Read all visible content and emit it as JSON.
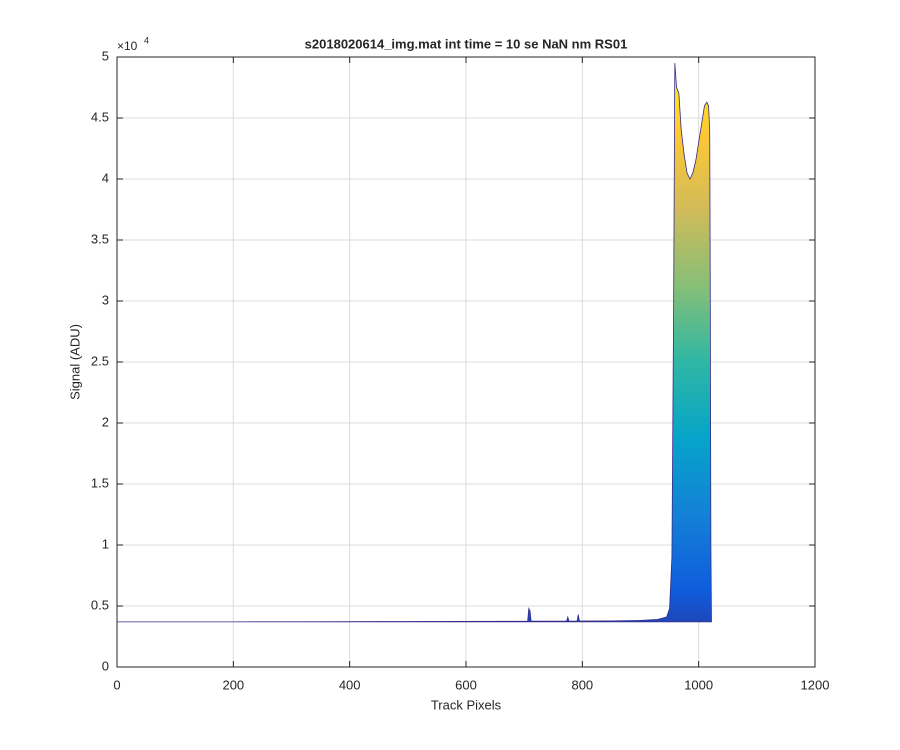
{
  "chart_data": {
    "type": "area",
    "title": "s2018020614_img.mat int time = 10 se  NaN nm RS01",
    "xlabel": "Track Pixels",
    "ylabel": "Signal (ADU)",
    "y_exponent": {
      "base": "×10",
      "power": "4"
    },
    "x": [
      0,
      100,
      200,
      300,
      400,
      500,
      600,
      700,
      706,
      708,
      710,
      712,
      773,
      775,
      777,
      791,
      793,
      795,
      850,
      900,
      930,
      945,
      950,
      954,
      957,
      959,
      962,
      966,
      970,
      975,
      980,
      985,
      990,
      995,
      1000,
      1005,
      1010,
      1014,
      1017,
      1019,
      1020,
      1021,
      1022
    ],
    "values": [
      3700,
      3700,
      3700,
      3710,
      3720,
      3730,
      3740,
      3750,
      3760,
      4800,
      4600,
      3760,
      3760,
      4100,
      3760,
      3760,
      4300,
      3770,
      3780,
      3820,
      3900,
      4100,
      4800,
      9000,
      30000,
      49500,
      47500,
      47000,
      44000,
      42000,
      40500,
      40000,
      40500,
      41500,
      43000,
      44500,
      46000,
      46300,
      46000,
      44000,
      30000,
      10000,
      3800
    ],
    "line_color": "#352a87",
    "colormap": [
      "#352a87",
      "#0f5cdd",
      "#1481d6",
      "#06a4ca",
      "#2eb7a4",
      "#87bf77",
      "#d1bb59",
      "#fec832",
      "#f9fb0e"
    ],
    "xlim": [
      0,
      1200
    ],
    "xticks": [
      0,
      200,
      400,
      600,
      800,
      1000,
      1200
    ],
    "ylim": [
      0,
      50000
    ],
    "yticks": [
      0,
      {
        "value": 5000,
        "label": "0.5"
      },
      {
        "value": 10000,
        "label": "1"
      },
      {
        "value": 15000,
        "label": "1.5"
      },
      {
        "value": 20000,
        "label": "2"
      },
      {
        "value": 25000,
        "label": "2.5"
      },
      {
        "value": 30000,
        "label": "3"
      },
      {
        "value": 35000,
        "label": "3.5"
      },
      {
        "value": 40000,
        "label": "4"
      },
      {
        "value": 45000,
        "label": "4.5"
      },
      {
        "value": 50000,
        "label": "5"
      }
    ],
    "grid": true
  }
}
